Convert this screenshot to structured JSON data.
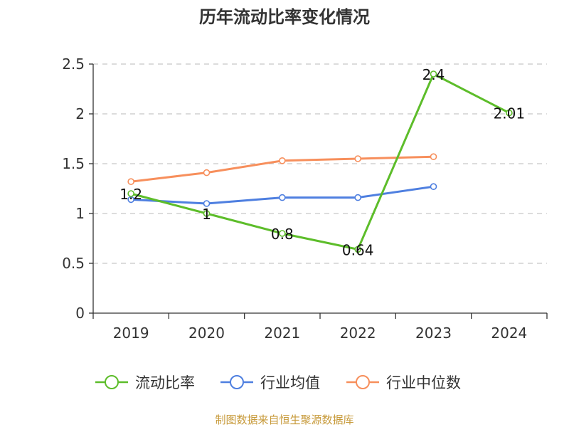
{
  "colors": {
    "current_ratio": "#5dbd2a",
    "industry_mean": "#4e7fe0",
    "industry_median": "#f78f5c",
    "source": "#c79a3a"
  },
  "chart_data": {
    "type": "line",
    "title": "历年流动比率变化情况",
    "categories": [
      "2019",
      "2020",
      "2021",
      "2022",
      "2023",
      "2024"
    ],
    "ylim": [
      0,
      2.5
    ],
    "yticks": [
      "0",
      "0.5",
      "1",
      "1.5",
      "2",
      "2.5"
    ],
    "grid": true,
    "legend_position": "bottom-center",
    "series": [
      {
        "name": "流动比率",
        "values": [
          1.2,
          1,
          0.8,
          0.64,
          2.4,
          2.01
        ],
        "labels": [
          "1.2",
          "1",
          "0.8",
          "0.64",
          "2.4",
          "2.01"
        ],
        "color_key": "current_ratio"
      },
      {
        "name": "行业均值",
        "values": [
          1.14,
          1.1,
          1.16,
          1.16,
          1.27,
          null
        ],
        "color_key": "industry_mean"
      },
      {
        "name": "行业中位数",
        "values": [
          1.32,
          1.41,
          1.53,
          1.55,
          1.57,
          null
        ],
        "color_key": "industry_median"
      }
    ],
    "source": "制图数据来自恒生聚源数据库"
  }
}
